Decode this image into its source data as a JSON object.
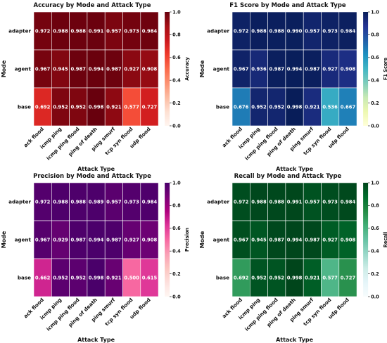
{
  "chart_data": [
    {
      "type": "heatmap",
      "title": "Accuracy by Mode and Attack Type",
      "xlabel": "Attack Type",
      "ylabel": "Mode",
      "colorbar_label": "Accuracy",
      "colormap": "reds",
      "colorbar_range": [
        0.0,
        1.0
      ],
      "colorbar_ticks": [
        "0.0",
        "0.2",
        "0.4",
        "0.6",
        "0.8",
        "1.0"
      ],
      "rows": [
        "adapter",
        "agent",
        "base"
      ],
      "columns": [
        "ack flood",
        "icmp ping",
        "icmp ping flood",
        "ping of death",
        "ping smurf",
        "tcp syn flood",
        "udp flood"
      ],
      "values": [
        [
          0.972,
          0.988,
          0.988,
          0.991,
          0.957,
          0.973,
          0.984
        ],
        [
          0.967,
          0.945,
          0.987,
          0.994,
          0.987,
          0.927,
          0.908
        ],
        [
          0.692,
          0.952,
          0.952,
          0.998,
          0.921,
          0.577,
          0.727
        ]
      ],
      "labels": [
        [
          "0.972",
          "0.988",
          "0.988",
          "0.991",
          "0.957",
          "0.973",
          "0.984"
        ],
        [
          "0.967",
          "0.945",
          "0.987",
          "0.994",
          "0.987",
          "0.927",
          "0.908"
        ],
        [
          "0.692",
          "0.952",
          "0.952",
          "0.998",
          "0.921",
          "0.577",
          "0.727"
        ]
      ]
    },
    {
      "type": "heatmap",
      "title": "F1 Score by Mode and Attack Type",
      "xlabel": "Attack Type",
      "ylabel": "Mode",
      "colorbar_label": "F1 Score",
      "colormap": "ylgnbu",
      "colorbar_range": [
        0.0,
        1.0
      ],
      "colorbar_ticks": [
        "0.0",
        "0.2",
        "0.4",
        "0.6",
        "0.8",
        "1.0"
      ],
      "rows": [
        "adapter",
        "agent",
        "base"
      ],
      "columns": [
        "ack flood",
        "icmp ping",
        "icmp ping flood",
        "ping of death",
        "ping smurf",
        "tcp syn flood",
        "udp flood"
      ],
      "values": [
        [
          0.972,
          0.988,
          0.988,
          0.99,
          0.957,
          0.973,
          0.984
        ],
        [
          0.967,
          0.936,
          0.987,
          0.994,
          0.987,
          0.927,
          0.908
        ],
        [
          0.676,
          0.952,
          0.952,
          0.998,
          0.921,
          0.536,
          0.667
        ]
      ],
      "labels": [
        [
          "0.972",
          "0.988",
          "0.988",
          "0.990",
          "0.957",
          "0.973",
          "0.984"
        ],
        [
          "0.967",
          "0.936",
          "0.987",
          "0.994",
          "0.987",
          "0.927",
          "0.908"
        ],
        [
          "0.676",
          "0.952",
          "0.952",
          "0.998",
          "0.921",
          "0.536",
          "0.667"
        ]
      ]
    },
    {
      "type": "heatmap",
      "title": "Precision by Mode and Attack Type",
      "xlabel": "Attack Type",
      "ylabel": "Mode",
      "colorbar_label": "Precision",
      "colormap": "rdpu",
      "colorbar_range": [
        0.0,
        1.0
      ],
      "colorbar_ticks": [
        "0.0",
        "0.2",
        "0.4",
        "0.6",
        "0.8",
        "1.0"
      ],
      "rows": [
        "adapter",
        "agent",
        "base"
      ],
      "columns": [
        "ack flood",
        "icmp ping",
        "icmp ping flood",
        "ping of death",
        "ping smurf",
        "tcp syn flood",
        "udp flood"
      ],
      "values": [
        [
          0.972,
          0.988,
          0.988,
          0.989,
          0.957,
          0.973,
          0.984
        ],
        [
          0.967,
          0.929,
          0.987,
          0.994,
          0.987,
          0.927,
          0.908
        ],
        [
          0.662,
          0.952,
          0.952,
          0.998,
          0.921,
          0.5,
          0.615
        ]
      ],
      "labels": [
        [
          "0.972",
          "0.988",
          "0.988",
          "0.989",
          "0.957",
          "0.973",
          "0.984"
        ],
        [
          "0.967",
          "0.929",
          "0.987",
          "0.994",
          "0.987",
          "0.927",
          "0.908"
        ],
        [
          "0.662",
          "0.952",
          "0.952",
          "0.998",
          "0.921",
          "0.500",
          "0.615"
        ]
      ]
    },
    {
      "type": "heatmap",
      "title": "Recall by Mode and Attack Type",
      "xlabel": "Attack Type",
      "ylabel": "Mode",
      "colorbar_label": "Recall",
      "colormap": "bugn",
      "colorbar_range": [
        0.0,
        1.0
      ],
      "colorbar_ticks": [
        "0.0",
        "0.2",
        "0.4",
        "0.6",
        "0.8",
        "1.0"
      ],
      "rows": [
        "adapter",
        "agent",
        "base"
      ],
      "columns": [
        "ack flood",
        "icmp ping",
        "icmp ping flood",
        "ping of death",
        "ping smurf",
        "tcp syn flood",
        "udp flood"
      ],
      "values": [
        [
          0.972,
          0.988,
          0.988,
          0.991,
          0.957,
          0.973,
          0.984
        ],
        [
          0.967,
          0.945,
          0.987,
          0.994,
          0.987,
          0.927,
          0.908
        ],
        [
          0.692,
          0.952,
          0.952,
          0.998,
          0.921,
          0.577,
          0.727
        ]
      ],
      "labels": [
        [
          "0.972",
          "0.988",
          "0.988",
          "0.991",
          "0.957",
          "0.973",
          "0.984"
        ],
        [
          "0.967",
          "0.945",
          "0.987",
          "0.994",
          "0.987",
          "0.927",
          "0.908"
        ],
        [
          "0.692",
          "0.952",
          "0.952",
          "0.998",
          "0.921",
          "0.577",
          "0.727"
        ]
      ]
    }
  ],
  "colormaps": {
    "reds": [
      "#fff5f0",
      "#fee0d2",
      "#fcbba1",
      "#fc9272",
      "#fb6a4a",
      "#ef3b2c",
      "#cb181d",
      "#a50f15",
      "#67000d"
    ],
    "ylgnbu": [
      "#ffffd9",
      "#edf8b1",
      "#c7e9b4",
      "#7fcdbb",
      "#41b6c4",
      "#1d91c0",
      "#225ea8",
      "#253494",
      "#081d58"
    ],
    "rdpu": [
      "#fff7f3",
      "#fde0dd",
      "#fcc5c0",
      "#fa9fb5",
      "#f768a1",
      "#dd3497",
      "#ae017e",
      "#7a0177",
      "#49006a"
    ],
    "bugn": [
      "#f7fcfd",
      "#e5f5f9",
      "#ccece6",
      "#99d8c9",
      "#66c2a4",
      "#41ae76",
      "#238b45",
      "#006d2c",
      "#00441b"
    ]
  }
}
